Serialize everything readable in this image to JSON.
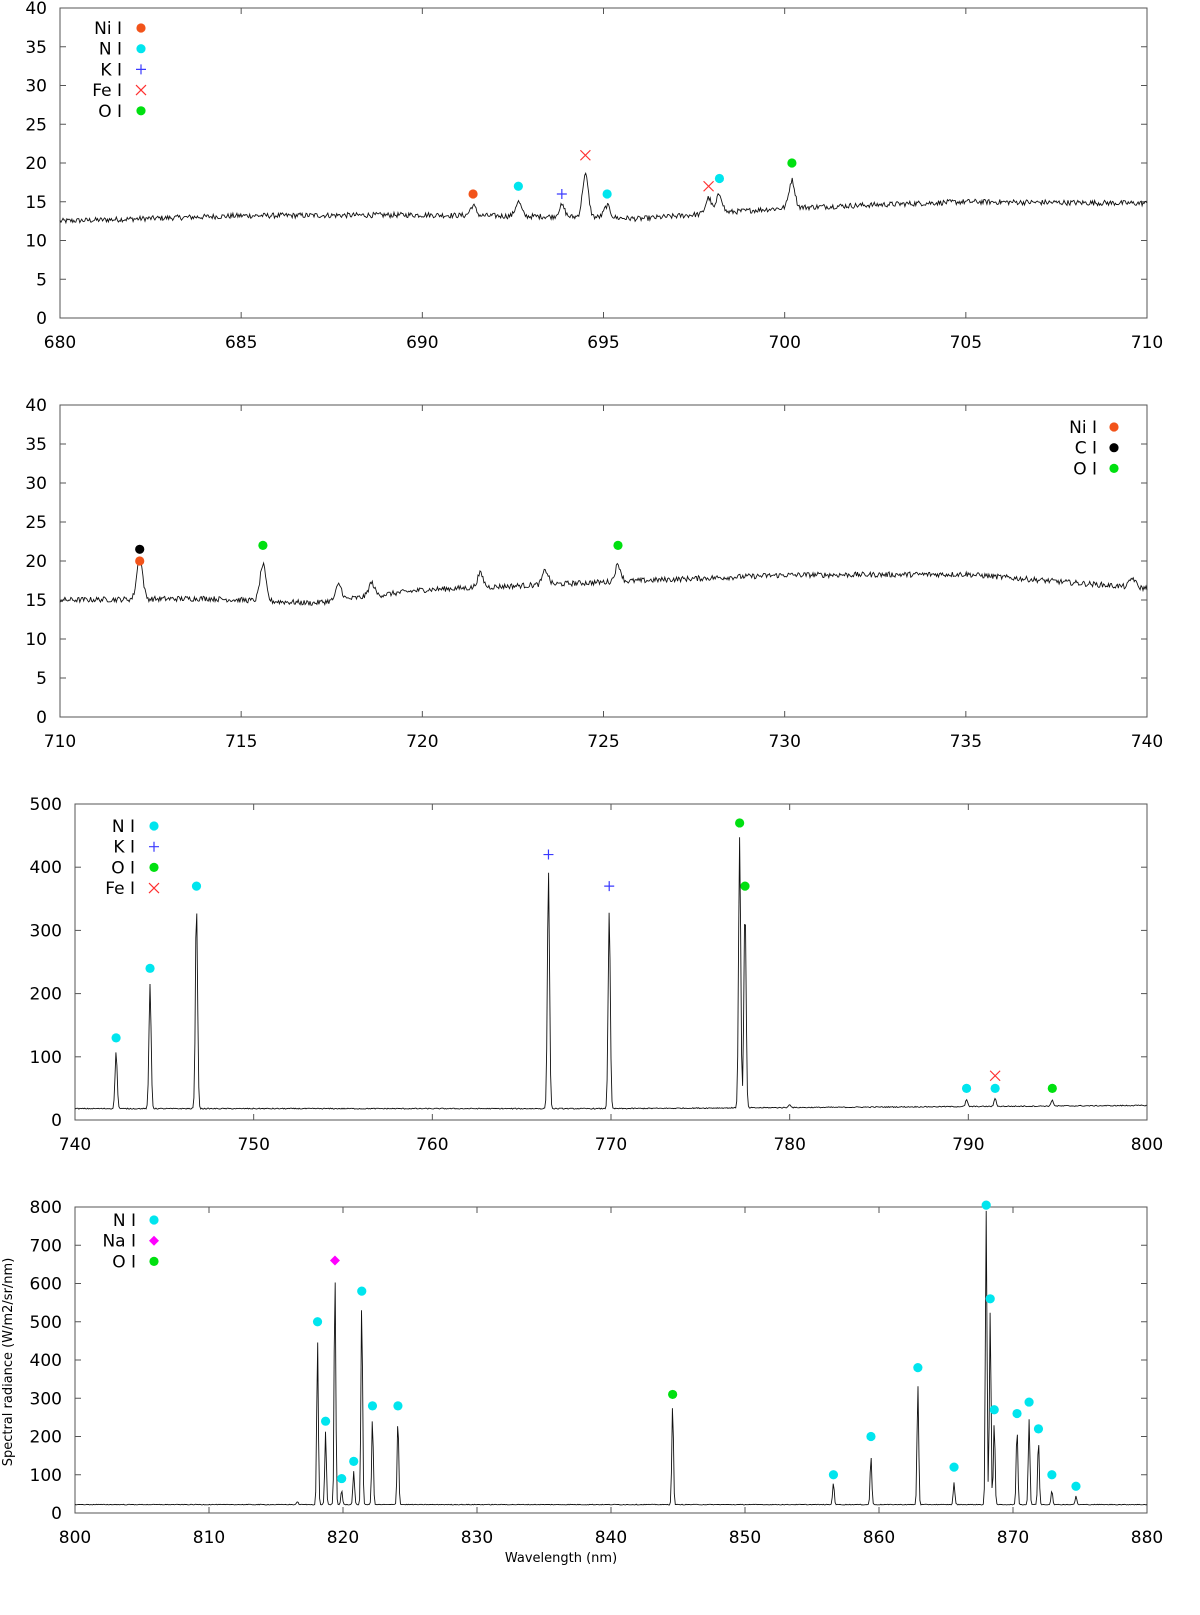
{
  "chart_data": [
    {
      "type": "line",
      "xlim": [
        680,
        710
      ],
      "ylim": [
        0,
        40
      ],
      "xticks": [
        680,
        685,
        690,
        695,
        700,
        705,
        710
      ],
      "yticks": [
        0,
        5,
        10,
        15,
        20,
        25,
        30,
        35,
        40
      ],
      "xlabel": "",
      "ylabel": "",
      "legend_position": "top-left",
      "legend": [
        {
          "name": "Ni I",
          "marker": "circle",
          "color": "#f2531a"
        },
        {
          "name": "N I",
          "marker": "circle",
          "color": "#00e5ee"
        },
        {
          "name": "K I",
          "marker": "plus",
          "color": "#3a3aff"
        },
        {
          "name": "Fe I",
          "marker": "cross",
          "color": "#ff3030"
        },
        {
          "name": "O I",
          "marker": "circle",
          "color": "#00e010"
        }
      ],
      "continuum": [
        [
          680,
          12.5
        ],
        [
          685,
          13.2
        ],
        [
          690,
          13.3
        ],
        [
          695,
          13.0
        ],
        [
          696,
          12.8
        ],
        [
          700,
          14.2
        ],
        [
          705,
          15.0
        ],
        [
          710,
          14.8
        ]
      ],
      "noise": 0.35,
      "width": 0.08,
      "lines": [
        {
          "x": 691.4,
          "peak": 14.5,
          "marker_y": 16,
          "species": "Ni I"
        },
        {
          "x": 692.65,
          "peak": 15.0,
          "marker_y": 17,
          "species": "N I"
        },
        {
          "x": 693.85,
          "peak": 14.5,
          "marker_y": 16,
          "species": "K I"
        },
        {
          "x": 694.5,
          "peak": 18.5,
          "marker_y": 21,
          "species": "Fe I"
        },
        {
          "x": 695.1,
          "peak": 14.5,
          "marker_y": 16,
          "species": "N I"
        },
        {
          "x": 697.9,
          "peak": 15.5,
          "marker_y": 17,
          "species": "Fe I"
        },
        {
          "x": 698.2,
          "peak": 16.0,
          "marker_y": 18,
          "species": "N I"
        },
        {
          "x": 700.2,
          "peak": 17.8,
          "marker_y": 20,
          "species": "O I"
        }
      ]
    },
    {
      "type": "line",
      "xlim": [
        710,
        740
      ],
      "ylim": [
        0,
        40
      ],
      "xticks": [
        710,
        715,
        720,
        725,
        730,
        735,
        740
      ],
      "yticks": [
        0,
        5,
        10,
        15,
        20,
        25,
        30,
        35,
        40
      ],
      "xlabel": "",
      "ylabel": "",
      "legend_position": "top-right",
      "legend": [
        {
          "name": "Ni I",
          "marker": "circle",
          "color": "#f2531a"
        },
        {
          "name": "C I",
          "marker": "circle",
          "color": "#000000"
        },
        {
          "name": "O I",
          "marker": "circle",
          "color": "#00e010"
        }
      ],
      "continuum": [
        [
          710,
          15.0
        ],
        [
          714,
          15.2
        ],
        [
          717,
          14.6
        ],
        [
          720,
          16.3
        ],
        [
          725,
          17.3
        ],
        [
          730,
          18.2
        ],
        [
          735,
          18.3
        ],
        [
          738,
          17.2
        ],
        [
          740,
          16.5
        ]
      ],
      "noise": 0.35,
      "width": 0.08,
      "lines": [
        {
          "x": 712.2,
          "peak": 17.8,
          "marker_y": 20,
          "species": "Ni I"
        },
        {
          "x": 712.2,
          "peak": 17.8,
          "marker_y": 21.5,
          "species": "C I"
        },
        {
          "x": 715.6,
          "peak": 19.5,
          "marker_y": 22,
          "species": "O I"
        },
        {
          "x": 725.4,
          "peak": 19.5,
          "marker_y": 22,
          "species": "O I"
        },
        {
          "x": 717.7,
          "peak": 17.0
        },
        {
          "x": 718.6,
          "peak": 17.2
        },
        {
          "x": 721.6,
          "peak": 18.4
        },
        {
          "x": 723.4,
          "peak": 18.8
        },
        {
          "x": 739.6,
          "peak": 17.8
        }
      ]
    },
    {
      "type": "line",
      "xlim": [
        740,
        800
      ],
      "ylim": [
        0,
        500
      ],
      "xticks": [
        740,
        750,
        760,
        770,
        780,
        790,
        800
      ],
      "yticks": [
        0,
        100,
        200,
        300,
        400,
        500
      ],
      "xlabel": "",
      "ylabel": "",
      "legend_position": "top-left",
      "legend": [
        {
          "name": "N I",
          "marker": "circle",
          "color": "#00e5ee"
        },
        {
          "name": "K I",
          "marker": "plus",
          "color": "#3a3aff"
        },
        {
          "name": "O I",
          "marker": "circle",
          "color": "#00e010"
        },
        {
          "name": "Fe I",
          "marker": "cross",
          "color": "#ff3030"
        }
      ],
      "continuum": [
        [
          740,
          18
        ],
        [
          770,
          18
        ],
        [
          800,
          23
        ]
      ],
      "noise": 0.8,
      "width": 0.06,
      "lines": [
        {
          "x": 742.3,
          "peak": 108,
          "marker_y": 130,
          "species": "N I"
        },
        {
          "x": 744.2,
          "peak": 215,
          "marker_y": 240,
          "species": "N I"
        },
        {
          "x": 746.8,
          "peak": 342,
          "marker_y": 370,
          "species": "N I"
        },
        {
          "x": 766.5,
          "peak": 395,
          "marker_y": 420,
          "species": "K I"
        },
        {
          "x": 769.9,
          "peak": 332,
          "marker_y": 370,
          "species": "K I"
        },
        {
          "x": 777.2,
          "peak": 447,
          "marker_y": 470,
          "species": "O I"
        },
        {
          "x": 777.5,
          "peak": 340,
          "marker_y": 370,
          "species": "O I"
        },
        {
          "x": 789.9,
          "peak": 32,
          "marker_y": 50,
          "species": "N I"
        },
        {
          "x": 791.5,
          "peak": 28,
          "marker_y": 50,
          "species": "N I"
        },
        {
          "x": 791.5,
          "peak": 28,
          "marker_y": 70,
          "species": "Fe I"
        },
        {
          "x": 794.7,
          "peak": 32,
          "marker_y": 50,
          "species": "O I"
        },
        {
          "x": 780.0,
          "peak": 25
        }
      ]
    },
    {
      "type": "line",
      "xlim": [
        800,
        880
      ],
      "ylim": [
        0,
        800
      ],
      "xticks": [
        800,
        810,
        820,
        830,
        840,
        850,
        860,
        870,
        880
      ],
      "yticks": [
        0,
        100,
        200,
        300,
        400,
        500,
        600,
        700,
        800
      ],
      "xlabel": "Wavelength (nm)",
      "ylabel": "Spectral radiance (W/m2/sr/nm)",
      "legend_position": "top-left",
      "legend": [
        {
          "name": "N I",
          "marker": "circle",
          "color": "#00e5ee"
        },
        {
          "name": "Na I",
          "marker": "diamond",
          "color": "#ff00ff"
        },
        {
          "name": "O I",
          "marker": "circle",
          "color": "#00e010"
        }
      ],
      "continuum": [
        [
          800,
          22
        ],
        [
          840,
          22
        ],
        [
          880,
          22
        ]
      ],
      "noise": 0.9,
      "width": 0.06,
      "lines": [
        {
          "x": 816.6,
          "peak": 30
        },
        {
          "x": 818.1,
          "peak": 450,
          "marker_y": 500,
          "species": "N I"
        },
        {
          "x": 818.7,
          "peak": 215,
          "marker_y": 240,
          "species": "N I"
        },
        {
          "x": 819.4,
          "peak": 630,
          "marker_y": 660,
          "species": "Na I"
        },
        {
          "x": 819.9,
          "peak": 60,
          "marker_y": 90,
          "species": "N I"
        },
        {
          "x": 820.8,
          "peak": 110,
          "marker_y": 135,
          "species": "N I"
        },
        {
          "x": 821.4,
          "peak": 555,
          "marker_y": 580,
          "species": "N I"
        },
        {
          "x": 822.2,
          "peak": 250,
          "marker_y": 280,
          "species": "N I"
        },
        {
          "x": 824.1,
          "peak": 250,
          "marker_y": 280,
          "species": "N I"
        },
        {
          "x": 844.6,
          "peak": 285,
          "marker_y": 310,
          "species": "O I"
        },
        {
          "x": 856.6,
          "peak": 80,
          "marker_y": 100,
          "species": "N I"
        },
        {
          "x": 859.4,
          "peak": 150,
          "marker_y": 200,
          "species": "N I"
        },
        {
          "x": 862.9,
          "peak": 335,
          "marker_y": 380,
          "species": "N I"
        },
        {
          "x": 865.6,
          "peak": 80,
          "marker_y": 120,
          "species": "N I"
        },
        {
          "x": 868.0,
          "peak": 790,
          "marker_y": 805,
          "species": "N I"
        },
        {
          "x": 868.3,
          "peak": 530,
          "marker_y": 560,
          "species": "N I"
        },
        {
          "x": 868.6,
          "peak": 240,
          "marker_y": 270,
          "species": "N I"
        },
        {
          "x": 870.3,
          "peak": 225,
          "marker_y": 260,
          "species": "N I"
        },
        {
          "x": 871.2,
          "peak": 245,
          "marker_y": 290,
          "species": "N I"
        },
        {
          "x": 871.9,
          "peak": 195,
          "marker_y": 220,
          "species": "N I"
        },
        {
          "x": 872.9,
          "peak": 60,
          "marker_y": 100,
          "species": "N I"
        },
        {
          "x": 874.7,
          "peak": 45,
          "marker_y": 70,
          "species": "N I"
        }
      ]
    }
  ]
}
